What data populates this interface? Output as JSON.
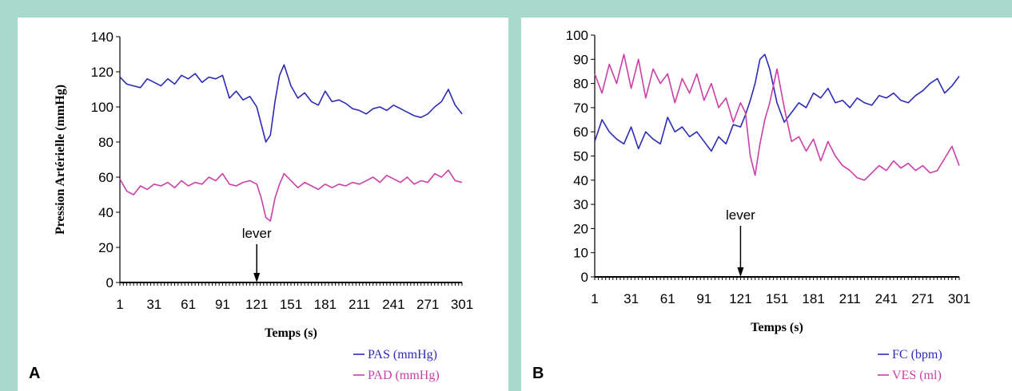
{
  "chart_data": [
    {
      "panel": "A",
      "type": "line",
      "xlabel": "Temps (s)",
      "ylabel": "Pression Artérielle (mmHg)",
      "xlim": [
        1,
        301
      ],
      "ylim": [
        0,
        140
      ],
      "xticks": [
        1,
        31,
        61,
        91,
        121,
        151,
        181,
        211,
        241,
        271,
        301
      ],
      "yticks": [
        0,
        20,
        40,
        60,
        80,
        100,
        120,
        140
      ],
      "annotation": {
        "text": "lever",
        "x": 121
      },
      "legend_position": "bottom-right",
      "series": [
        {
          "name": "PAS (mmHg)",
          "color": "#2b2bb5",
          "x": [
            1,
            7,
            13,
            19,
            25,
            31,
            37,
            43,
            49,
            55,
            61,
            67,
            73,
            79,
            85,
            91,
            97,
            103,
            109,
            115,
            121,
            125,
            129,
            133,
            137,
            141,
            145,
            151,
            157,
            163,
            169,
            175,
            181,
            187,
            193,
            199,
            205,
            211,
            217,
            223,
            229,
            235,
            241,
            247,
            253,
            259,
            265,
            271,
            277,
            283,
            289,
            295,
            301
          ],
          "y": [
            117,
            113,
            112,
            111,
            116,
            114,
            112,
            116,
            113,
            118,
            116,
            119,
            114,
            117,
            116,
            118,
            105,
            109,
            104,
            106,
            100,
            90,
            80,
            84,
            103,
            118,
            124,
            112,
            105,
            108,
            103,
            101,
            109,
            103,
            104,
            102,
            99,
            98,
            96,
            99,
            100,
            98,
            101,
            99,
            97,
            95,
            94,
            96,
            100,
            103,
            110,
            101,
            96
          ]
        },
        {
          "name": "PAD (mmHg)",
          "color": "#cc3ea8",
          "x": [
            1,
            7,
            13,
            19,
            25,
            31,
            37,
            43,
            49,
            55,
            61,
            67,
            73,
            79,
            85,
            91,
            97,
            103,
            109,
            115,
            121,
            125,
            129,
            133,
            137,
            141,
            145,
            151,
            157,
            163,
            169,
            175,
            181,
            187,
            193,
            199,
            205,
            211,
            217,
            223,
            229,
            235,
            241,
            247,
            253,
            259,
            265,
            271,
            277,
            283,
            289,
            295,
            301
          ],
          "y": [
            59,
            52,
            50,
            55,
            53,
            56,
            55,
            57,
            54,
            58,
            55,
            57,
            56,
            60,
            58,
            62,
            56,
            55,
            57,
            58,
            56,
            48,
            37,
            35,
            48,
            56,
            62,
            58,
            54,
            57,
            55,
            53,
            56,
            54,
            56,
            55,
            57,
            56,
            58,
            60,
            57,
            61,
            59,
            57,
            60,
            56,
            58,
            57,
            62,
            60,
            64,
            58,
            57
          ]
        }
      ]
    },
    {
      "panel": "B",
      "type": "line",
      "xlabel": "Temps (s)",
      "ylabel": "",
      "xlim": [
        1,
        301
      ],
      "ylim": [
        0,
        100
      ],
      "xticks": [
        1,
        31,
        61,
        91,
        121,
        151,
        181,
        211,
        241,
        271,
        301
      ],
      "yticks": [
        0,
        10,
        20,
        30,
        40,
        50,
        60,
        70,
        80,
        90,
        100
      ],
      "annotation": {
        "text": "lever",
        "x": 121
      },
      "legend_position": "bottom-right",
      "series": [
        {
          "name": "FC (bpm)",
          "color": "#2b2bb5",
          "x": [
            1,
            7,
            13,
            19,
            25,
            31,
            37,
            43,
            49,
            55,
            61,
            67,
            73,
            79,
            85,
            91,
            97,
            103,
            109,
            115,
            121,
            125,
            129,
            133,
            137,
            141,
            145,
            151,
            157,
            163,
            169,
            175,
            181,
            187,
            193,
            199,
            205,
            211,
            217,
            223,
            229,
            235,
            241,
            247,
            253,
            259,
            265,
            271,
            277,
            283,
            289,
            295,
            301
          ],
          "y": [
            56,
            65,
            60,
            57,
            55,
            62,
            53,
            60,
            57,
            55,
            66,
            60,
            62,
            58,
            60,
            56,
            52,
            58,
            55,
            63,
            62,
            67,
            73,
            80,
            90,
            92,
            86,
            72,
            64,
            68,
            72,
            70,
            76,
            74,
            78,
            72,
            73,
            70,
            74,
            72,
            71,
            75,
            74,
            76,
            73,
            72,
            75,
            77,
            80,
            82,
            76,
            79,
            83
          ]
        },
        {
          "name": "VES (ml)",
          "color": "#cc3ea8",
          "x": [
            1,
            7,
            13,
            19,
            25,
            31,
            37,
            43,
            49,
            55,
            61,
            67,
            73,
            79,
            85,
            91,
            97,
            103,
            109,
            115,
            121,
            125,
            129,
            133,
            137,
            141,
            145,
            151,
            157,
            163,
            169,
            175,
            181,
            187,
            193,
            199,
            205,
            211,
            217,
            223,
            229,
            235,
            241,
            247,
            253,
            259,
            265,
            271,
            277,
            283,
            289,
            295,
            301
          ],
          "y": [
            84,
            76,
            88,
            80,
            92,
            78,
            90,
            74,
            86,
            80,
            84,
            72,
            82,
            76,
            84,
            73,
            80,
            70,
            74,
            64,
            72,
            68,
            50,
            42,
            55,
            65,
            72,
            86,
            70,
            56,
            58,
            52,
            57,
            48,
            56,
            50,
            46,
            44,
            41,
            40,
            43,
            46,
            44,
            48,
            45,
            47,
            44,
            46,
            43,
            44,
            49,
            54,
            46
          ]
        }
      ]
    }
  ]
}
